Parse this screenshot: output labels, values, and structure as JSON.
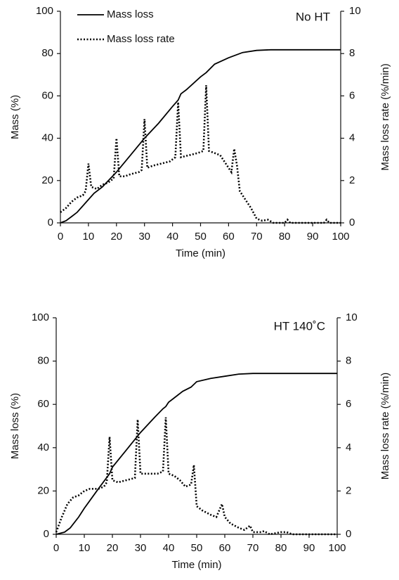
{
  "chart_data": [
    {
      "type": "line",
      "annotation": "No HT",
      "x_label": "Time (min)",
      "y_label": "Mass (%)",
      "y2_label": "Mass loss rate (%/min)",
      "xlim": [
        0,
        100
      ],
      "xticks": [
        0,
        10,
        20,
        30,
        40,
        50,
        60,
        70,
        80,
        90,
        100
      ],
      "ylim": [
        0,
        100
      ],
      "yticks": [
        0,
        20,
        40,
        60,
        80,
        100
      ],
      "y2lim": [
        0,
        10
      ],
      "y2ticks": [
        0,
        2,
        4,
        6,
        8,
        10
      ],
      "legend": true,
      "series": [
        {
          "name": "Mass loss",
          "color": "#000000",
          "style": "solid",
          "x": [
            0,
            2,
            4,
            6,
            8,
            10,
            12,
            15,
            20,
            25,
            30,
            35,
            40,
            42,
            43,
            45,
            50,
            52,
            55,
            60,
            65,
            70,
            75,
            80,
            100
          ],
          "values": [
            0,
            1,
            3,
            5,
            8,
            11,
            14,
            17,
            24,
            32,
            40,
            47,
            55,
            58,
            61,
            63,
            69,
            71,
            75,
            78,
            80.5,
            81.5,
            81.8,
            81.8,
            81.8
          ]
        },
        {
          "name": "Mass loss rate",
          "color": "#000000",
          "style": "dotted",
          "axis": "y2",
          "x": [
            0,
            2,
            4,
            6,
            8,
            9,
            10,
            11,
            13,
            15,
            17,
            19,
            20,
            21,
            23,
            25,
            28,
            29,
            30,
            31,
            33,
            36,
            39,
            41,
            42,
            43,
            46,
            49,
            51,
            52,
            53,
            55,
            57,
            59,
            61,
            62,
            63,
            64,
            66,
            68,
            70,
            72,
            74,
            76,
            80,
            81,
            82,
            94,
            95,
            96,
            100
          ],
          "values": [
            0.5,
            0.7,
            1.0,
            1.2,
            1.3,
            1.5,
            2.8,
            1.7,
            1.6,
            1.8,
            1.9,
            2.1,
            4.0,
            2.2,
            2.2,
            2.3,
            2.4,
            2.5,
            4.9,
            2.6,
            2.7,
            2.8,
            2.9,
            3.1,
            5.7,
            3.1,
            3.2,
            3.3,
            3.4,
            6.5,
            3.4,
            3.3,
            3.2,
            2.8,
            2.4,
            3.5,
            2.7,
            1.5,
            1.1,
            0.7,
            0.2,
            0.1,
            0.15,
            0,
            0,
            0.15,
            0,
            0,
            0.15,
            0,
            0
          ]
        }
      ]
    },
    {
      "type": "line",
      "annotation": "HT 140˚C",
      "x_label": "Time (min)",
      "y_label": "Mass loss (%)",
      "y2_label": "Mass loss rate (%/min)",
      "xlim": [
        0,
        100
      ],
      "xticks": [
        0,
        10,
        20,
        30,
        40,
        50,
        60,
        70,
        80,
        90,
        100
      ],
      "ylim": [
        0,
        100
      ],
      "yticks": [
        0,
        20,
        40,
        60,
        80,
        100
      ],
      "y2lim": [
        0,
        10
      ],
      "y2ticks": [
        0,
        2,
        4,
        6,
        8,
        10
      ],
      "legend": false,
      "series": [
        {
          "color": "#000000",
          "style": "solid",
          "x": [
            0,
            3,
            5,
            8,
            10,
            15,
            19,
            20,
            25,
            30,
            35,
            38,
            39,
            40,
            42,
            45,
            48,
            50,
            55,
            60,
            65,
            70,
            100
          ],
          "values": [
            0,
            1,
            3,
            8,
            12,
            21,
            28,
            31,
            39,
            47,
            54,
            58,
            59,
            61,
            63,
            66,
            68,
            70.5,
            72,
            73,
            74,
            74.3,
            74.3
          ]
        },
        {
          "color": "#000000",
          "style": "dotted",
          "axis": "y2",
          "x": [
            0,
            2,
            4,
            6,
            8,
            10,
            12,
            15,
            17,
            18,
            19,
            20,
            22,
            25,
            28,
            29,
            30,
            33,
            36,
            38,
            39,
            40,
            42,
            44,
            46,
            48,
            49,
            50,
            52,
            55,
            57,
            59,
            60,
            62,
            65,
            67,
            69,
            70,
            73,
            74,
            76,
            80,
            82,
            84,
            100
          ],
          "values": [
            0.1,
            0.8,
            1.4,
            1.7,
            1.8,
            2.0,
            2.1,
            2.1,
            2.2,
            2.4,
            4.5,
            2.5,
            2.4,
            2.5,
            2.6,
            5.3,
            2.8,
            2.8,
            2.8,
            2.9,
            5.4,
            2.8,
            2.7,
            2.5,
            2.2,
            2.3,
            3.2,
            1.3,
            1.1,
            0.9,
            0.8,
            1.4,
            0.8,
            0.5,
            0.3,
            0.2,
            0.4,
            0.1,
            0.1,
            0.15,
            0,
            0.1,
            0.1,
            0,
            0
          ]
        }
      ]
    }
  ]
}
